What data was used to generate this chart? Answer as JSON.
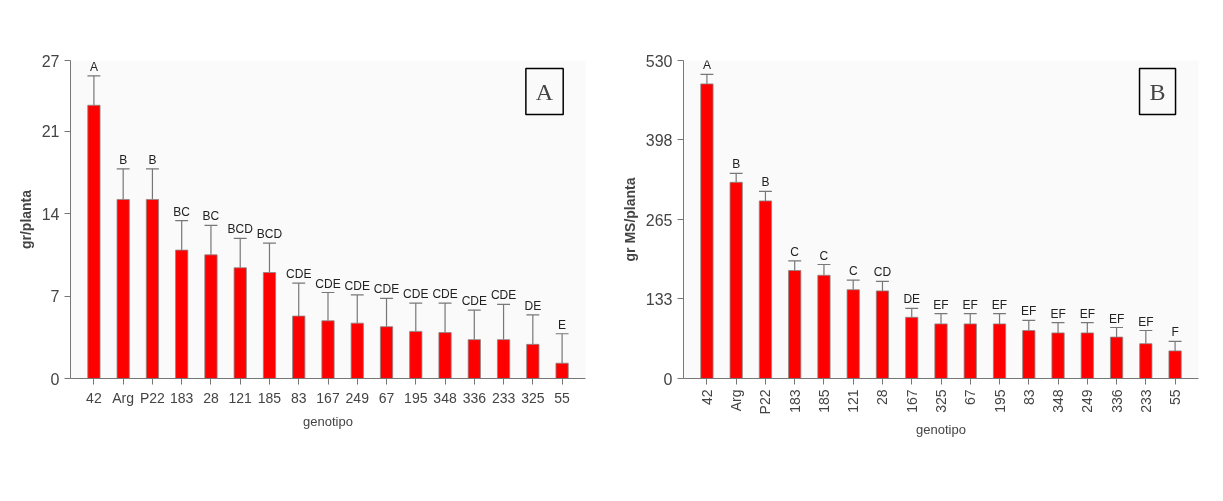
{
  "chart_data": [
    {
      "type": "bar",
      "title": "A",
      "xlabel": "genotipo",
      "ylabel": "gr/planta",
      "categories": [
        "42",
        "Arg",
        "P22",
        "183",
        "28",
        "121",
        "185",
        "83",
        "167",
        "249",
        "67",
        "195",
        "348",
        "336",
        "233",
        "325",
        "55"
      ],
      "values": [
        23.2,
        15.2,
        15.2,
        10.9,
        10.5,
        9.4,
        9.0,
        5.3,
        4.9,
        4.7,
        4.4,
        4.0,
        3.9,
        3.3,
        3.3,
        2.9,
        1.3
      ],
      "errors": [
        [
          23.2,
          25.7
        ],
        [
          15.2,
          17.8
        ],
        [
          15.2,
          17.8
        ],
        [
          10.9,
          13.4
        ],
        [
          10.5,
          13.0
        ],
        [
          9.4,
          11.9
        ],
        [
          9.0,
          11.5
        ],
        [
          5.3,
          8.1
        ],
        [
          4.9,
          7.3
        ],
        [
          4.7,
          7.1
        ],
        [
          4.4,
          6.8
        ],
        [
          4.0,
          6.4
        ],
        [
          3.9,
          6.4
        ],
        [
          3.3,
          5.8
        ],
        [
          3.3,
          6.3
        ],
        [
          2.9,
          5.4
        ],
        [
          1.3,
          3.8
        ]
      ],
      "value_labels": [
        "A",
        "B",
        "B",
        "BC",
        "BC",
        "BCD",
        "BCD",
        "CDE",
        "CDE",
        "CDE",
        "CDE",
        "CDE",
        "CDE",
        "CDE",
        "CDE",
        "DE",
        "E"
      ],
      "color": "#ff0000",
      "ylim": [
        0,
        27
      ],
      "yticks": [
        0,
        7,
        14,
        21,
        27
      ]
    },
    {
      "type": "bar",
      "title": "B",
      "xlabel": "genotipo",
      "ylabel": "gr MS/planta",
      "categories": [
        "42",
        "Arg",
        "P22",
        "183",
        "185",
        "121",
        "28",
        "167",
        "325",
        "67",
        "195",
        "83",
        "348",
        "249",
        "336",
        "233",
        "55"
      ],
      "values": [
        491,
        327,
        296,
        180,
        172,
        148,
        146,
        102,
        91,
        91,
        91,
        80,
        76,
        76,
        69,
        58,
        46
      ],
      "errors": [
        [
          491,
          507
        ],
        [
          327,
          342
        ],
        [
          296,
          312
        ],
        [
          180,
          196
        ],
        [
          172,
          190
        ],
        [
          148,
          164
        ],
        [
          146,
          162
        ],
        [
          102,
          117
        ],
        [
          91,
          108
        ],
        [
          91,
          108
        ],
        [
          91,
          108
        ],
        [
          80,
          97
        ],
        [
          76,
          93
        ],
        [
          76,
          93
        ],
        [
          69,
          85
        ],
        [
          58,
          80
        ],
        [
          46,
          62
        ]
      ],
      "value_labels": [
        "A",
        "B",
        "B",
        "C",
        "C",
        "C",
        "CD",
        "DE",
        "EF",
        "EF",
        "EF",
        "EF",
        "EF",
        "EF",
        "EF",
        "EF",
        "F"
      ],
      "color": "#ff0000",
      "ylim": [
        0,
        530
      ],
      "yticks": [
        0,
        133,
        265,
        398,
        530
      ]
    }
  ]
}
